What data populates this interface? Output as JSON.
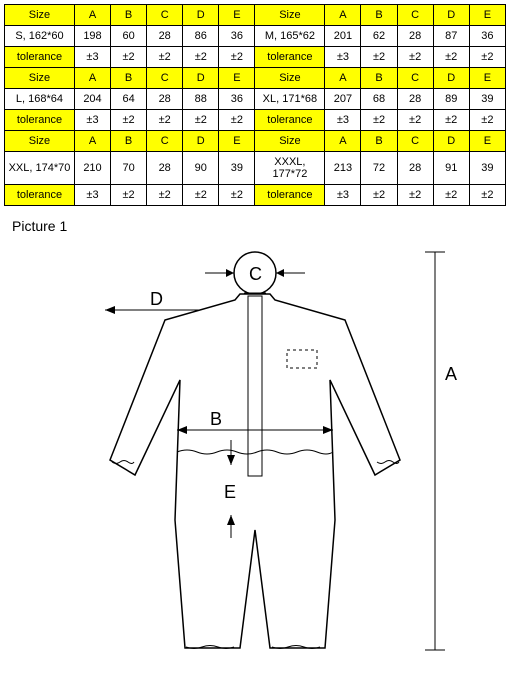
{
  "table": {
    "header": [
      "Size",
      "A",
      "B",
      "C",
      "D",
      "E",
      "Size",
      "A",
      "B",
      "C",
      "D",
      "E"
    ],
    "rows": [
      {
        "left_label": "S, 162*60",
        "left_label_yellow": false,
        "left": [
          "198",
          "60",
          "28",
          "86",
          "36"
        ],
        "right_label": "M, 165*62",
        "right_label_yellow": false,
        "right": [
          "201",
          "62",
          "28",
          "87",
          "36"
        ]
      },
      {
        "left_label": "tolerance",
        "left_label_yellow": true,
        "left": [
          "±3",
          "±2",
          "±2",
          "±2",
          "±2"
        ],
        "right_label": "tolerance",
        "right_label_yellow": true,
        "right": [
          "±3",
          "±2",
          "±2",
          "±2",
          "±2"
        ]
      },
      {
        "left_label": "Size",
        "left_label_yellow": true,
        "left": [
          "A",
          "B",
          "C",
          "D",
          "E"
        ],
        "right_label": "Size",
        "right_label_yellow": true,
        "right": [
          "A",
          "B",
          "C",
          "D",
          "E"
        ],
        "row_yellow": true
      },
      {
        "left_label": "L, 168*64",
        "left_label_yellow": false,
        "left": [
          "204",
          "64",
          "28",
          "88",
          "36"
        ],
        "right_label": "XL, 171*68",
        "right_label_yellow": false,
        "right": [
          "207",
          "68",
          "28",
          "89",
          "39"
        ]
      },
      {
        "left_label": "tolerance",
        "left_label_yellow": true,
        "left": [
          "±3",
          "±2",
          "±2",
          "±2",
          "±2"
        ],
        "right_label": "tolerance",
        "right_label_yellow": true,
        "right": [
          "±3",
          "±2",
          "±2",
          "±2",
          "±2"
        ]
      },
      {
        "left_label": "Size",
        "left_label_yellow": true,
        "left": [
          "A",
          "B",
          "C",
          "D",
          "E"
        ],
        "right_label": "Size",
        "right_label_yellow": true,
        "right": [
          "A",
          "B",
          "C",
          "D",
          "E"
        ],
        "row_yellow": true
      },
      {
        "left_label": "XXL, 174*70",
        "left_label_yellow": false,
        "left": [
          "210",
          "70",
          "28",
          "90",
          "39"
        ],
        "right_label": "XXXL, 177*72",
        "right_label_yellow": false,
        "right": [
          "213",
          "72",
          "28",
          "91",
          "39"
        ]
      },
      {
        "left_label": "tolerance",
        "left_label_yellow": true,
        "left": [
          "±3",
          "±2",
          "±2",
          "±2",
          "±2"
        ],
        "right_label": "tolerance",
        "right_label_yellow": true,
        "right": [
          "±3",
          "±2",
          "±2",
          "±2",
          "±2"
        ]
      }
    ]
  },
  "picture_label": "Picture 1",
  "dims": {
    "A": "A",
    "B": "B",
    "C": "C",
    "D": "D",
    "E": "E"
  }
}
